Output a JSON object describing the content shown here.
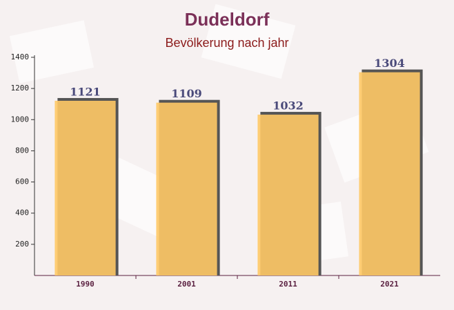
{
  "chart_data": {
    "type": "bar",
    "title": "Dudeldorf",
    "subtitle": "Bevölkerung nach jahr",
    "categories": [
      "1990",
      "2001",
      "2011",
      "2021"
    ],
    "values": [
      1121,
      1109,
      1032,
      1304
    ],
    "color": "#ffc966",
    "ylim": [
      0,
      1400
    ],
    "yticks": [
      200,
      400,
      600,
      800,
      1000,
      1200,
      1400
    ]
  }
}
